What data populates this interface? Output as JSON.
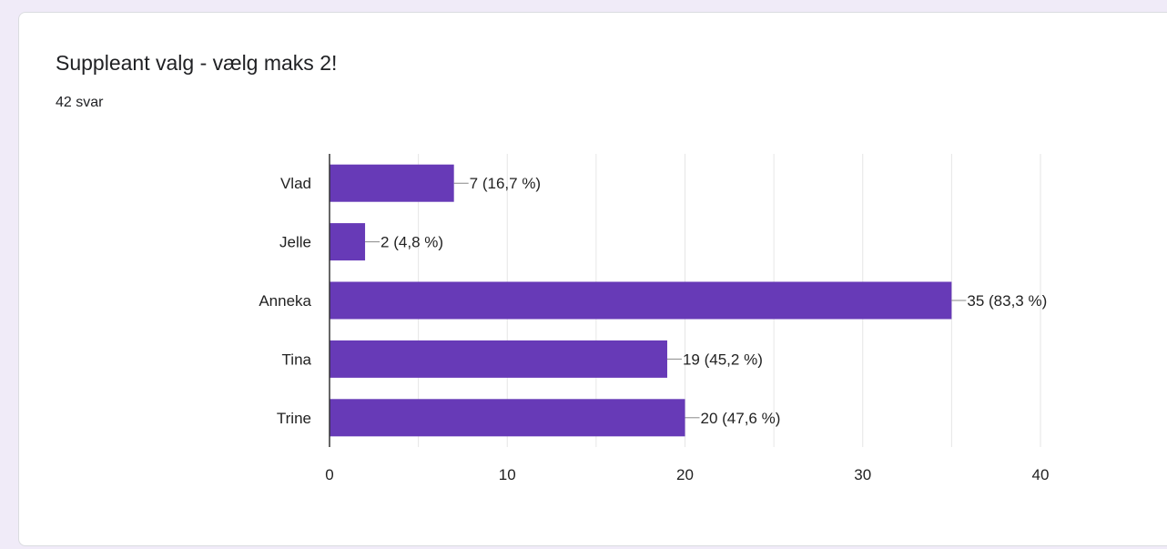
{
  "card": {
    "title": "Suppleant valg - vælg maks 2!",
    "response_count": "42 svar"
  },
  "chart_data": {
    "type": "bar",
    "orientation": "horizontal",
    "categories": [
      "Vlad",
      "Jelle",
      "Anneka",
      "Tina",
      "Trine"
    ],
    "values": [
      7,
      2,
      35,
      19,
      20
    ],
    "data_labels": [
      "7 (16,7 %)",
      "2 (4,8 %)",
      "35 (83,3 %)",
      "19 (45,2 %)",
      "20 (47,6 %)"
    ],
    "xlim": [
      0,
      40
    ],
    "xticks": [
      0,
      10,
      20,
      30,
      40
    ],
    "grid": true,
    "bar_color": "#673ab7",
    "grid_color": "#e6e6e6",
    "axis_color": "#333333"
  }
}
